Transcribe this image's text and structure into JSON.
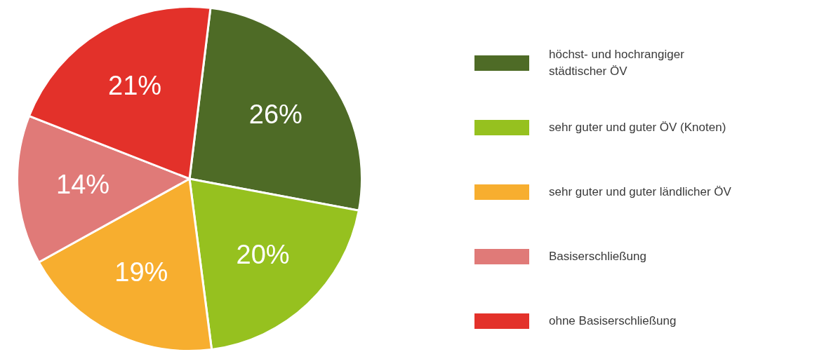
{
  "chart_data": {
    "type": "pie",
    "categories": [
      "höchst- und hochrangiger städtischer ÖV",
      "sehr guter und guter ÖV (Knoten)",
      "sehr guter und guter ländlicher ÖV",
      "Basiserschließung",
      "ohne Basiserschließung"
    ],
    "values": [
      26,
      20,
      19,
      14,
      21
    ],
    "value_labels": [
      "26%",
      "20%",
      "19%",
      "14%",
      "21%"
    ],
    "colors": [
      "#4e6b26",
      "#96c11f",
      "#f7ae2f",
      "#e07a78",
      "#e3312a"
    ],
    "legend": "right"
  }
}
